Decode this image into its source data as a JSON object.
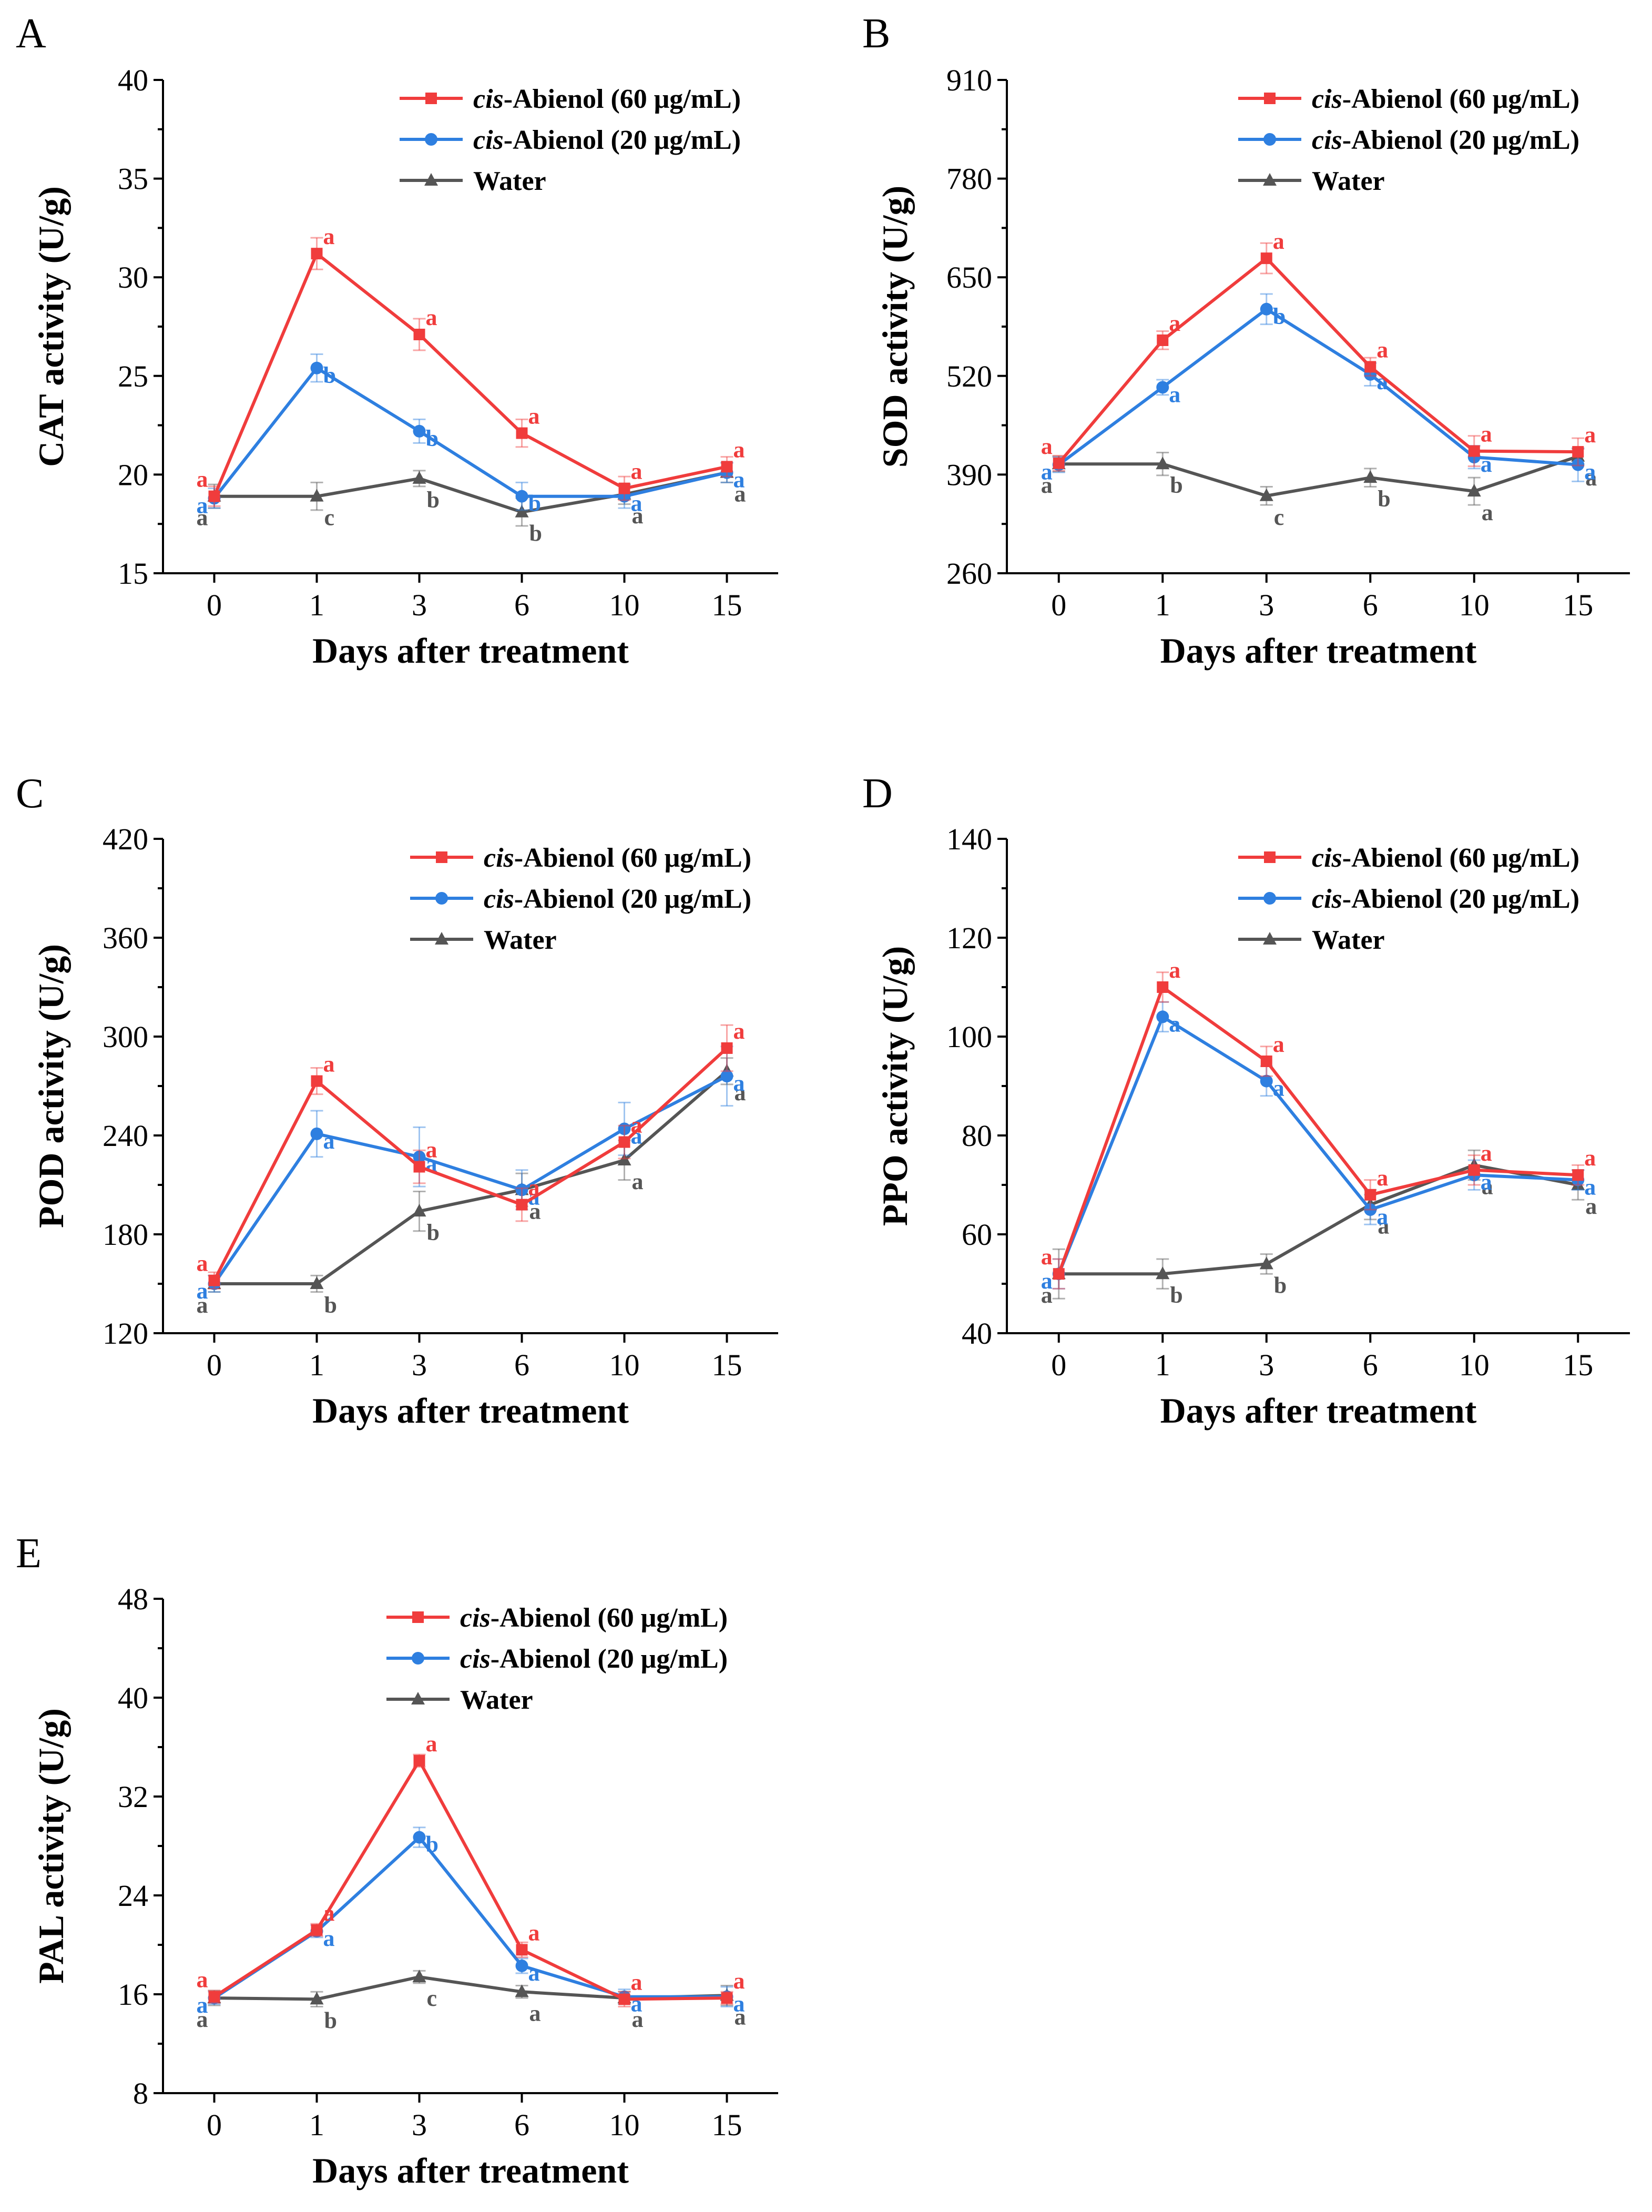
{
  "figure": {
    "x_axis_title": "Days after treatment"
  },
  "colors": {
    "s60": "#f03c3c",
    "s20": "#2e7fe0",
    "water": "#555555"
  },
  "legend": [
    {
      "key": "s60",
      "italic": "cis",
      "rest": "-Abienol (60 μg/mL)",
      "marker": "square"
    },
    {
      "key": "s20",
      "italic": "cis",
      "rest": "-Abienol (20 μg/mL)",
      "marker": "circle"
    },
    {
      "key": "water",
      "italic": "",
      "rest": "Water",
      "marker": "triangle"
    }
  ],
  "chart_data": [
    {
      "panel": "A",
      "type": "line",
      "ylabel": "CAT activity (U/g)",
      "xlabel": "Days after treatment",
      "categories": [
        "0",
        "1",
        "3",
        "6",
        "10",
        "15"
      ],
      "ylim": [
        15,
        40
      ],
      "yticks": [
        15,
        20,
        25,
        30,
        35,
        40
      ],
      "legend_position": "top-right",
      "series": [
        {
          "key": "s60",
          "name": "cis-Abienol (60 μg/mL)",
          "values": [
            18.9,
            31.2,
            27.1,
            22.1,
            19.3,
            20.4
          ],
          "errors": [
            0.5,
            0.8,
            0.8,
            0.7,
            0.6,
            0.5
          ],
          "letters": [
            "a",
            "a",
            "a",
            "a",
            "a",
            "a"
          ]
        },
        {
          "key": "s20",
          "name": "cis-Abienol (20 μg/mL)",
          "values": [
            18.8,
            25.4,
            22.2,
            18.9,
            18.9,
            20.1
          ],
          "errors": [
            0.5,
            0.7,
            0.6,
            0.7,
            0.6,
            0.5
          ],
          "letters": [
            "a",
            "b",
            "b",
            "b",
            "a",
            "a"
          ]
        },
        {
          "key": "water",
          "name": "Water",
          "values": [
            18.9,
            18.9,
            19.8,
            18.1,
            19.0,
            20.1
          ],
          "errors": [
            0.6,
            0.7,
            0.4,
            0.7,
            0.5,
            0.5
          ],
          "letters": [
            "a",
            "c",
            "b",
            "b",
            "a",
            "a"
          ]
        }
      ]
    },
    {
      "panel": "B",
      "type": "line",
      "ylabel": "SOD activity (U/g)",
      "xlabel": "Days after treatment",
      "categories": [
        "0",
        "1",
        "3",
        "6",
        "10",
        "15"
      ],
      "ylim": [
        260,
        910
      ],
      "yticks": [
        260,
        390,
        520,
        650,
        780,
        910
      ],
      "legend_position": "top-right",
      "series": [
        {
          "key": "s60",
          "name": "cis-Abienol (60 μg/mL)",
          "values": [
            405,
            567,
            675,
            532,
            421,
            420
          ],
          "errors": [
            10,
            12,
            20,
            12,
            20,
            18
          ],
          "letters": [
            "a",
            "a",
            "a",
            "a",
            "a",
            "a"
          ]
        },
        {
          "key": "s20",
          "name": "cis-Abienol (20 μg/mL)",
          "values": [
            403,
            505,
            608,
            522,
            413,
            403
          ],
          "errors": [
            10,
            10,
            20,
            15,
            15,
            22
          ],
          "letters": [
            "a",
            "a",
            "b",
            "a",
            "a",
            "a"
          ]
        },
        {
          "key": "water",
          "name": "Water",
          "values": [
            404,
            404,
            362,
            386,
            368,
            414
          ],
          "errors": [
            10,
            15,
            12,
            12,
            18,
            10
          ],
          "letters": [
            "a",
            "b",
            "c",
            "b",
            "a",
            "a"
          ]
        }
      ]
    },
    {
      "panel": "C",
      "type": "line",
      "ylabel": "POD activity (U/g)",
      "xlabel": "Days after treatment",
      "categories": [
        "0",
        "1",
        "3",
        "6",
        "10",
        "15"
      ],
      "ylim": [
        120,
        420
      ],
      "yticks": [
        120,
        180,
        240,
        300,
        360,
        420
      ],
      "legend_position": "top-right",
      "series": [
        {
          "key": "s60",
          "name": "cis-Abienol (60 μg/mL)",
          "values": [
            152,
            273,
            221,
            198,
            236,
            293
          ],
          "errors": [
            5,
            8,
            10,
            10,
            10,
            14
          ],
          "letters": [
            "a",
            "a",
            "a",
            "a",
            "a",
            "a"
          ]
        },
        {
          "key": "s20",
          "name": "cis-Abienol (20 μg/mL)",
          "values": [
            150,
            241,
            227,
            207,
            244,
            276
          ],
          "errors": [
            5,
            14,
            18,
            12,
            16,
            18
          ],
          "letters": [
            "a",
            "a",
            "a",
            "a",
            "a",
            "a"
          ]
        },
        {
          "key": "water",
          "name": "Water",
          "values": [
            150,
            150,
            194,
            207,
            225,
            279
          ],
          "errors": [
            5,
            5,
            12,
            10,
            12,
            8
          ],
          "letters": [
            "a",
            "b",
            "b",
            "a",
            "a",
            "a"
          ]
        }
      ]
    },
    {
      "panel": "D",
      "type": "line",
      "ylabel": "PPO activity (U/g)",
      "xlabel": "Days after treatment",
      "categories": [
        "0",
        "1",
        "3",
        "6",
        "10",
        "15"
      ],
      "ylim": [
        40,
        140
      ],
      "yticks": [
        40,
        60,
        80,
        100,
        120,
        140
      ],
      "legend_position": "top-right",
      "series": [
        {
          "key": "s60",
          "name": "cis-Abienol (60 μg/mL)",
          "values": [
            52,
            110,
            95,
            68,
            73,
            72
          ],
          "errors": [
            3,
            3,
            3,
            3,
            3,
            2
          ],
          "letters": [
            "a",
            "a",
            "a",
            "a",
            "a",
            "a"
          ]
        },
        {
          "key": "s20",
          "name": "cis-Abienol (20 μg/mL)",
          "values": [
            52,
            104,
            91,
            65,
            72,
            71
          ],
          "errors": [
            3,
            3,
            3,
            3,
            3,
            2
          ],
          "letters": [
            "a",
            "a",
            "a",
            "a",
            "a",
            "a"
          ]
        },
        {
          "key": "water",
          "name": "Water",
          "values": [
            52,
            52,
            54,
            66,
            74,
            70
          ],
          "errors": [
            5,
            3,
            2,
            3,
            3,
            3
          ],
          "letters": [
            "a",
            "b",
            "b",
            "a",
            "a",
            "a"
          ]
        }
      ]
    },
    {
      "panel": "E",
      "type": "line",
      "ylabel": "PAL activity (U/g)",
      "xlabel": "Days after treatment",
      "categories": [
        "0",
        "1",
        "3",
        "6",
        "10",
        "15"
      ],
      "ylim": [
        8,
        48
      ],
      "yticks": [
        8,
        16,
        24,
        32,
        40,
        48
      ],
      "legend_position": "top-right",
      "series": [
        {
          "key": "s60",
          "name": "cis-Abienol (60 μg/mL)",
          "values": [
            15.8,
            21.2,
            34.9,
            19.6,
            15.6,
            15.7
          ],
          "errors": [
            0.5,
            0.5,
            0.5,
            0.6,
            0.6,
            0.5
          ],
          "letters": [
            "a",
            "a",
            "a",
            "a",
            "a",
            "a"
          ]
        },
        {
          "key": "s20",
          "name": "cis-Abienol (20 μg/mL)",
          "values": [
            15.7,
            21.1,
            28.7,
            18.3,
            15.8,
            15.8
          ],
          "errors": [
            0.5,
            0.5,
            0.8,
            0.6,
            0.6,
            0.8
          ],
          "letters": [
            "a",
            "a",
            "b",
            "a",
            "a",
            "a"
          ]
        },
        {
          "key": "water",
          "name": "Water",
          "values": [
            15.7,
            15.6,
            17.4,
            16.2,
            15.7,
            15.9
          ],
          "errors": [
            0.6,
            0.6,
            0.5,
            0.5,
            0.5,
            0.8
          ],
          "letters": [
            "a",
            "b",
            "c",
            "a",
            "a",
            "a"
          ]
        }
      ]
    }
  ]
}
